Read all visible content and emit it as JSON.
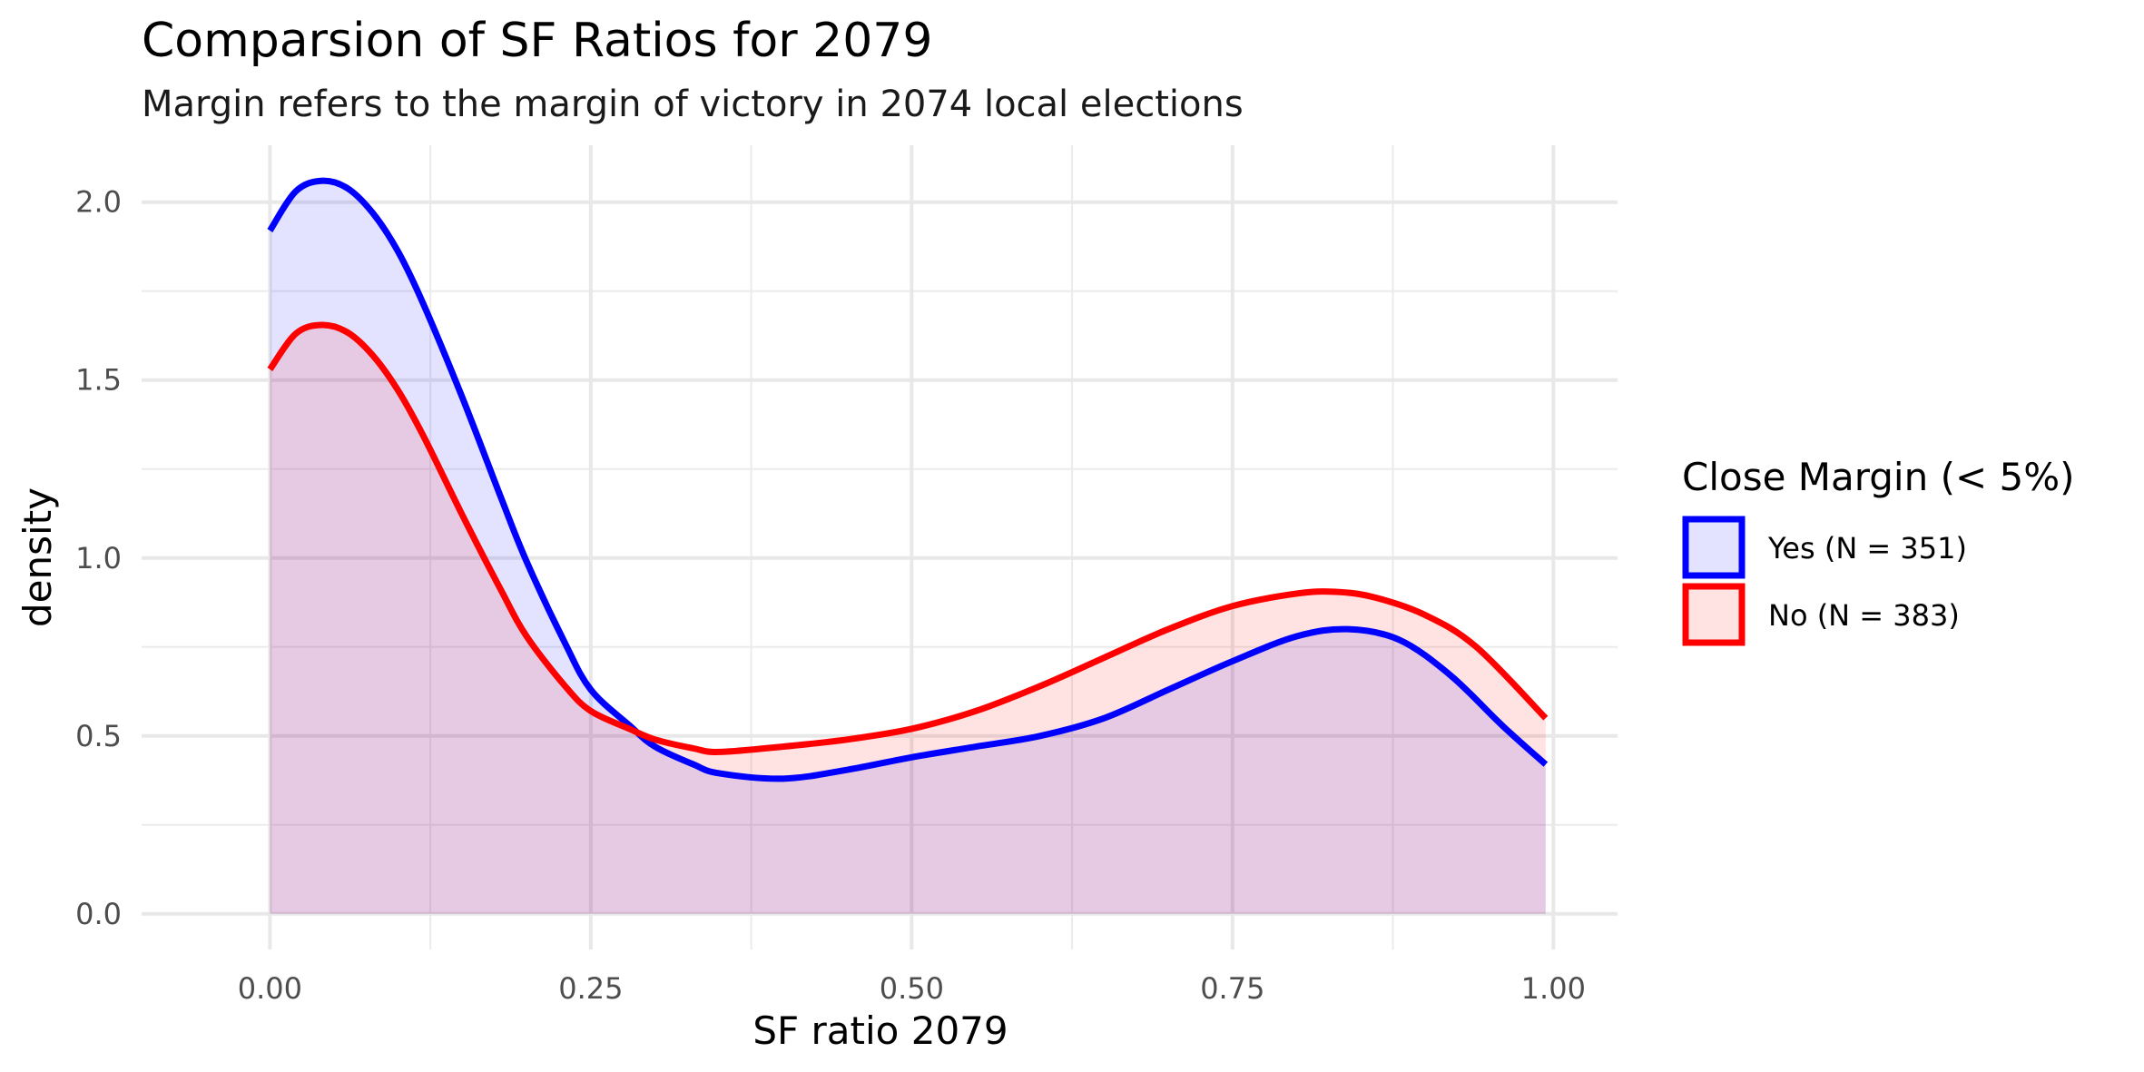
{
  "chart_data": {
    "type": "area",
    "title": "Comparsion of SF Ratios for 2079",
    "subtitle": "Margin refers to the margin of victory in 2074 local elections",
    "xlabel": "SF ratio 2079",
    "ylabel": "density",
    "xlim": [
      -0.1,
      1.05
    ],
    "ylim": [
      -0.1,
      2.16
    ],
    "x_ticks": [
      "0.00",
      "0.25",
      "0.50",
      "0.75",
      "1.00"
    ],
    "y_ticks": [
      "0.0",
      "0.5",
      "1.0",
      "1.5",
      "2.0"
    ],
    "grid": true,
    "legend": {
      "title": "Close Margin (< 5%)",
      "placement": "right"
    },
    "series": [
      {
        "name": "Yes (N = 351)",
        "color": "#0000ff",
        "fill": "#e3e3ff",
        "x": [
          0,
          0.02,
          0.04,
          0.06,
          0.08,
          0.1,
          0.12,
          0.15,
          0.18,
          0.2,
          0.23,
          0.25,
          0.28,
          0.3,
          0.33,
          0.35,
          0.4,
          0.45,
          0.5,
          0.55,
          0.6,
          0.65,
          0.7,
          0.75,
          0.8,
          0.84,
          0.88,
          0.92,
          0.96,
          0.994
        ],
        "values": [
          1.92,
          2.03,
          2.06,
          2.04,
          1.97,
          1.86,
          1.71,
          1.45,
          1.17,
          0.99,
          0.76,
          0.63,
          0.53,
          0.47,
          0.42,
          0.395,
          0.38,
          0.405,
          0.44,
          0.47,
          0.5,
          0.55,
          0.63,
          0.71,
          0.78,
          0.8,
          0.77,
          0.67,
          0.53,
          0.42
        ]
      },
      {
        "name": "No (N = 383)",
        "color": "#ff0000",
        "fill": "#ffe3e3",
        "x": [
          0,
          0.02,
          0.04,
          0.06,
          0.08,
          0.1,
          0.12,
          0.15,
          0.18,
          0.2,
          0.23,
          0.25,
          0.28,
          0.3,
          0.33,
          0.35,
          0.4,
          0.45,
          0.5,
          0.55,
          0.6,
          0.65,
          0.7,
          0.75,
          0.8,
          0.83,
          0.86,
          0.9,
          0.94,
          0.994
        ],
        "values": [
          1.53,
          1.63,
          1.655,
          1.635,
          1.57,
          1.47,
          1.34,
          1.12,
          0.91,
          0.78,
          0.64,
          0.57,
          0.52,
          0.49,
          0.465,
          0.455,
          0.47,
          0.49,
          0.52,
          0.57,
          0.64,
          0.72,
          0.8,
          0.865,
          0.9,
          0.905,
          0.89,
          0.84,
          0.75,
          0.55
        ]
      }
    ]
  }
}
